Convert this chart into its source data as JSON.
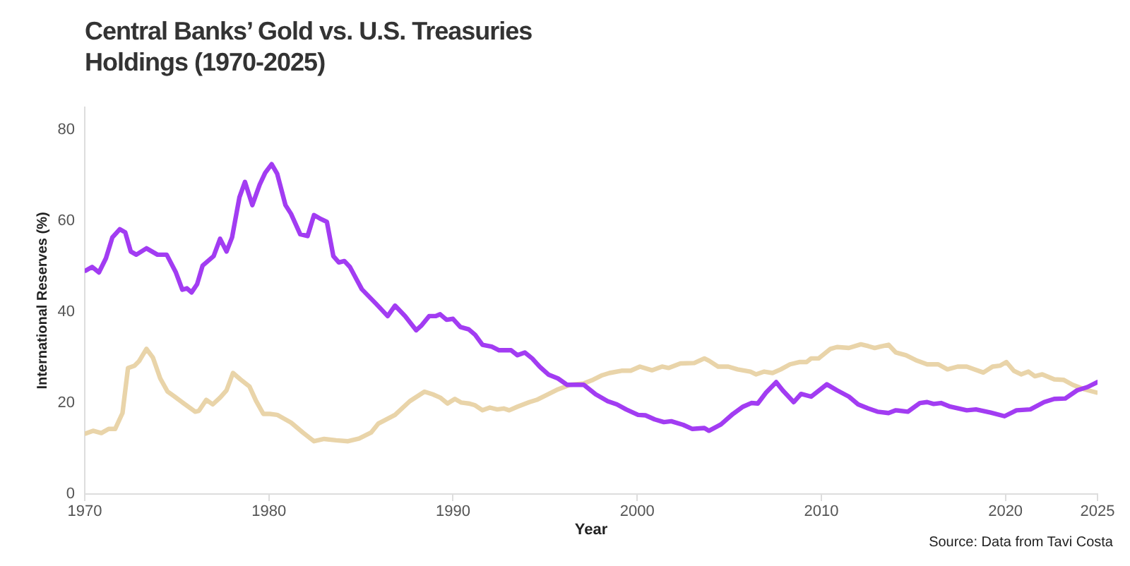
{
  "chart_data": {
    "type": "line",
    "title": "Central Banks’ Gold vs. U.S. Treasuries Holdings (1970-2025)",
    "xlabel": "Year",
    "ylabel": "International Reserves (%)",
    "annotations": [
      "Source: Data from Tavi Costa"
    ],
    "xlim": [
      1970,
      2025
    ],
    "xticks": [
      1970,
      1980,
      1990,
      2000,
      2010,
      2020,
      2025
    ],
    "ylim": [
      0,
      85
    ],
    "yticks": [
      0,
      20,
      40,
      60,
      80
    ],
    "marker": "none",
    "series": [
      {
        "color": "#a23cf2",
        "x": [
          1970.05,
          1970.4,
          1970.77,
          1971.15,
          1971.5,
          1971.9,
          1972.2,
          1972.5,
          1972.8,
          1973.35,
          1973.95,
          1974.45,
          1974.95,
          1975.3,
          1975.55,
          1975.8,
          1976.1,
          1976.4,
          1977.0,
          1977.35,
          1977.7,
          1978.0,
          1978.4,
          1978.7,
          1979.1,
          1979.5,
          1979.8,
          1980.15,
          1980.45,
          1980.9,
          1981.2,
          1981.7,
          1982.1,
          1982.45,
          1982.75,
          1983.15,
          1983.5,
          1983.8,
          1984.1,
          1984.4,
          1985.05,
          1985.8,
          1986.45,
          1986.85,
          1987.4,
          1988.0,
          1988.3,
          1988.7,
          1989.05,
          1989.3,
          1989.65,
          1990.0,
          1990.4,
          1990.85,
          1991.2,
          1991.6,
          1992.1,
          1992.5,
          1993.15,
          1993.5,
          1993.9,
          1994.3,
          1994.7,
          1995.2,
          1995.7,
          1996.2,
          1997.1,
          1997.75,
          1998.4,
          1998.9,
          1999.4,
          2000.05,
          2000.45,
          2000.95,
          2001.45,
          2001.85,
          2002.5,
          2003.0,
          2003.65,
          2003.9,
          2004.55,
          2005.2,
          2005.75,
          2006.2,
          2006.55,
          2007.0,
          2007.55,
          2007.9,
          2008.5,
          2008.9,
          2009.45,
          2010.3,
          2010.85,
          2011.5,
          2012.0,
          2012.55,
          2013.05,
          2013.65,
          2014.05,
          2014.7,
          2015.35,
          2015.75,
          2016.1,
          2016.5,
          2017.0,
          2017.9,
          2018.4,
          2019.2,
          2019.95,
          2020.6,
          2021.35,
          2022.1,
          2022.65,
          2023.25,
          2023.9,
          2024.45,
          2025.0
        ],
        "values": [
          49.1,
          49.9,
          48.7,
          51.8,
          56.4,
          58.2,
          57.5,
          53.3,
          52.6,
          54.0,
          52.6,
          52.6,
          48.7,
          44.9,
          45.2,
          44.3,
          46.1,
          50.2,
          52.3,
          56.1,
          53.3,
          56.4,
          65.2,
          68.6,
          63.5,
          68.0,
          70.6,
          72.5,
          70.4,
          63.5,
          61.6,
          57.1,
          56.7,
          61.3,
          60.6,
          59.8,
          52.3,
          50.9,
          51.2,
          49.9,
          45.0,
          41.9,
          39.1,
          41.4,
          39.1,
          36.0,
          37.1,
          39.1,
          39.1,
          39.5,
          38.3,
          38.5,
          36.7,
          36.2,
          35.0,
          32.8,
          32.4,
          31.6,
          31.6,
          30.5,
          31.1,
          29.8,
          28.0,
          26.2,
          25.4,
          24.0,
          24.0,
          21.9,
          20.4,
          19.7,
          18.6,
          17.4,
          17.3,
          16.4,
          15.8,
          16.0,
          15.2,
          14.3,
          14.5,
          13.9,
          15.3,
          17.6,
          19.2,
          20.0,
          19.9,
          22.3,
          24.6,
          22.8,
          20.2,
          22.0,
          21.4,
          24.1,
          22.8,
          21.4,
          19.7,
          18.8,
          18.1,
          17.8,
          18.4,
          18.1,
          20.0,
          20.2,
          19.8,
          20.0,
          19.2,
          18.4,
          18.6,
          17.9,
          17.1,
          18.4,
          18.6,
          20.2,
          20.9,
          21.0,
          22.8,
          23.5,
          24.6
        ]
      },
      {
        "color": "#e9d4a9",
        "x": [
          1970.05,
          1970.45,
          1970.9,
          1971.3,
          1971.65,
          1972.05,
          1972.35,
          1972.7,
          1972.95,
          1973.35,
          1973.7,
          1974.1,
          1974.5,
          1974.85,
          1975.35,
          1976.0,
          1976.2,
          1976.6,
          1976.95,
          1977.35,
          1977.7,
          1978.05,
          1978.45,
          1978.95,
          1979.3,
          1979.7,
          1980.05,
          1980.45,
          1981.2,
          1981.85,
          1982.45,
          1983.0,
          1983.65,
          1984.3,
          1984.9,
          1985.55,
          1985.95,
          1986.85,
          1987.65,
          1988.45,
          1988.9,
          1989.3,
          1989.7,
          1990.1,
          1990.45,
          1990.85,
          1991.2,
          1991.6,
          1992.0,
          1992.4,
          1992.75,
          1993.05,
          1993.5,
          1994.15,
          1994.55,
          1995.05,
          1995.7,
          1996.35,
          1997.1,
          1997.6,
          1998.1,
          1998.5,
          1999.15,
          1999.65,
          2000.15,
          2000.8,
          2001.35,
          2001.7,
          2002.35,
          2003.1,
          2003.65,
          2003.9,
          2004.4,
          2004.95,
          2005.45,
          2006.15,
          2006.45,
          2006.9,
          2007.35,
          2007.8,
          2008.3,
          2008.8,
          2009.2,
          2009.45,
          2009.85,
          2010.5,
          2010.85,
          2011.5,
          2012.15,
          2012.55,
          2012.9,
          2013.2,
          2013.65,
          2014.05,
          2014.6,
          2015.2,
          2015.75,
          2016.35,
          2016.85,
          2017.4,
          2017.9,
          2018.3,
          2018.8,
          2019.3,
          2019.7,
          2020.05,
          2020.45,
          2020.85,
          2021.25,
          2021.6,
          2022.0,
          2022.65,
          2023.15,
          2023.65,
          2024.3,
          2024.95
        ],
        "values": [
          13.3,
          13.9,
          13.4,
          14.3,
          14.3,
          17.8,
          27.7,
          28.2,
          29.2,
          31.9,
          30.0,
          25.4,
          22.5,
          21.5,
          20.0,
          18.1,
          18.3,
          20.7,
          19.7,
          21.2,
          22.8,
          26.6,
          25.2,
          23.6,
          20.5,
          17.6,
          17.6,
          17.4,
          15.7,
          13.5,
          11.6,
          12.1,
          11.8,
          11.6,
          12.2,
          13.5,
          15.5,
          17.4,
          20.4,
          22.5,
          21.9,
          21.2,
          19.9,
          20.9,
          20.1,
          19.9,
          19.5,
          18.4,
          19.0,
          18.6,
          18.8,
          18.4,
          19.2,
          20.2,
          20.7,
          21.7,
          23.0,
          24.0,
          24.3,
          25.1,
          26.1,
          26.6,
          27.1,
          27.1,
          28.0,
          27.2,
          28.0,
          27.7,
          28.7,
          28.8,
          29.8,
          29.3,
          28.0,
          28.0,
          27.4,
          26.9,
          26.3,
          26.9,
          26.6,
          27.4,
          28.5,
          29.0,
          29.0,
          29.8,
          29.8,
          31.9,
          32.3,
          32.1,
          32.9,
          32.5,
          32.1,
          32.4,
          32.8,
          31.1,
          30.5,
          29.3,
          28.5,
          28.5,
          27.4,
          28.0,
          28.0,
          27.4,
          26.7,
          28.0,
          28.2,
          29.0,
          27.1,
          26.3,
          26.9,
          25.9,
          26.3,
          25.2,
          25.1,
          24.0,
          23.0,
          22.3
        ]
      }
    ]
  }
}
